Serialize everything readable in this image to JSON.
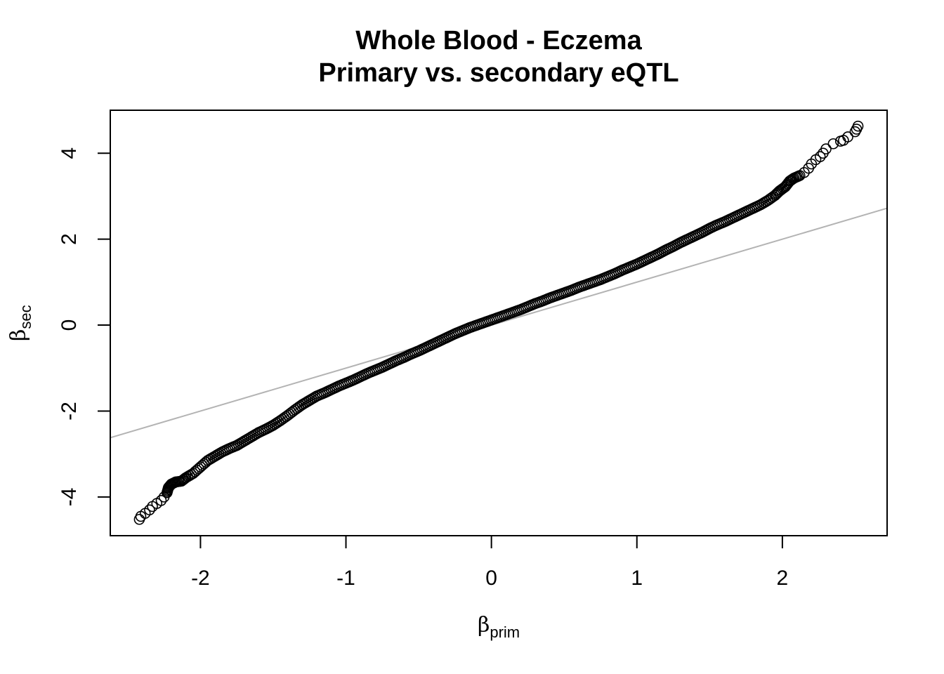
{
  "chart_data": {
    "type": "scatter",
    "title": "Whole Blood - Eczema",
    "subtitle": "Primary vs. secondary eQTL",
    "xlabel": {
      "symbol": "β",
      "subscript": "prim"
    },
    "ylabel": {
      "symbol": "β",
      "subscript": "sec"
    },
    "xlim": [
      -2.62,
      2.72
    ],
    "ylim": [
      -4.9,
      5.0
    ],
    "x_ticks": [
      -2,
      -1,
      0,
      1,
      2
    ],
    "x_tick_labels": [
      "-2",
      "-1",
      "0",
      "1",
      "2"
    ],
    "y_ticks": [
      -4,
      -2,
      0,
      2,
      4
    ],
    "y_tick_labels": [
      "-4",
      "-2",
      "0",
      "2",
      "4"
    ],
    "grid": false,
    "legend": "none",
    "marker": "open-circle",
    "point_color": "#000000",
    "reference_line": {
      "slope": 1,
      "intercept": 0,
      "color": "#b3b3b3"
    },
    "series": [
      {
        "x": [
          -2.42,
          -2.41,
          -2.38,
          -2.35,
          -2.33,
          -2.3,
          -2.27,
          -2.25,
          -2.23,
          -2.22,
          -2.2,
          -2.17,
          -2.13,
          -2.1,
          -2.05,
          -2.0,
          -1.95,
          -1.9,
          -1.85,
          -1.8,
          -1.75,
          -1.7,
          -1.65,
          -1.6,
          -1.55,
          -1.5,
          -1.45,
          -1.4,
          -1.35,
          -1.3,
          -1.25,
          -1.2,
          -1.15,
          -1.1,
          -1.05,
          -1.0,
          -0.95,
          -0.9,
          -0.85,
          -0.8,
          -0.75,
          -0.7,
          -0.65,
          -0.6,
          -0.55,
          -0.5,
          -0.45,
          -0.4,
          -0.35,
          -0.3,
          -0.25,
          -0.2,
          -0.15,
          -0.1,
          -0.05,
          0.0,
          0.05,
          0.1,
          0.15,
          0.2,
          0.25,
          0.3,
          0.35,
          0.4,
          0.45,
          0.5,
          0.55,
          0.6,
          0.65,
          0.7,
          0.75,
          0.8,
          0.85,
          0.9,
          0.95,
          1.0,
          1.05,
          1.1,
          1.15,
          1.2,
          1.25,
          1.3,
          1.35,
          1.4,
          1.45,
          1.5,
          1.55,
          1.6,
          1.65,
          1.7,
          1.75,
          1.8,
          1.85,
          1.9,
          1.95,
          1.98,
          2.02,
          2.05,
          2.08,
          2.12,
          2.15,
          2.18,
          2.2,
          2.23,
          2.26,
          2.28,
          2.3,
          2.35,
          2.4,
          2.42,
          2.45,
          2.5,
          2.51,
          2.52
        ],
        "y": [
          -4.52,
          -4.45,
          -4.38,
          -4.3,
          -4.22,
          -4.15,
          -4.08,
          -4.0,
          -3.9,
          -3.78,
          -3.7,
          -3.65,
          -3.63,
          -3.55,
          -3.45,
          -3.3,
          -3.15,
          -3.05,
          -2.95,
          -2.87,
          -2.8,
          -2.7,
          -2.6,
          -2.5,
          -2.42,
          -2.33,
          -2.22,
          -2.1,
          -1.97,
          -1.85,
          -1.75,
          -1.65,
          -1.58,
          -1.5,
          -1.42,
          -1.35,
          -1.28,
          -1.2,
          -1.12,
          -1.05,
          -0.98,
          -0.9,
          -0.82,
          -0.75,
          -0.67,
          -0.6,
          -0.52,
          -0.44,
          -0.36,
          -0.28,
          -0.2,
          -0.13,
          -0.06,
          0.0,
          0.06,
          0.12,
          0.18,
          0.24,
          0.3,
          0.36,
          0.43,
          0.5,
          0.56,
          0.63,
          0.69,
          0.75,
          0.81,
          0.88,
          0.94,
          1.0,
          1.06,
          1.13,
          1.2,
          1.28,
          1.35,
          1.42,
          1.5,
          1.58,
          1.66,
          1.75,
          1.83,
          1.92,
          2.0,
          2.08,
          2.16,
          2.25,
          2.33,
          2.4,
          2.48,
          2.56,
          2.64,
          2.72,
          2.8,
          2.9,
          3.02,
          3.12,
          3.22,
          3.35,
          3.42,
          3.48,
          3.55,
          3.65,
          3.75,
          3.85,
          3.92,
          4.0,
          4.1,
          4.22,
          4.28,
          4.3,
          4.38,
          4.5,
          4.56,
          4.63
        ]
      }
    ]
  }
}
